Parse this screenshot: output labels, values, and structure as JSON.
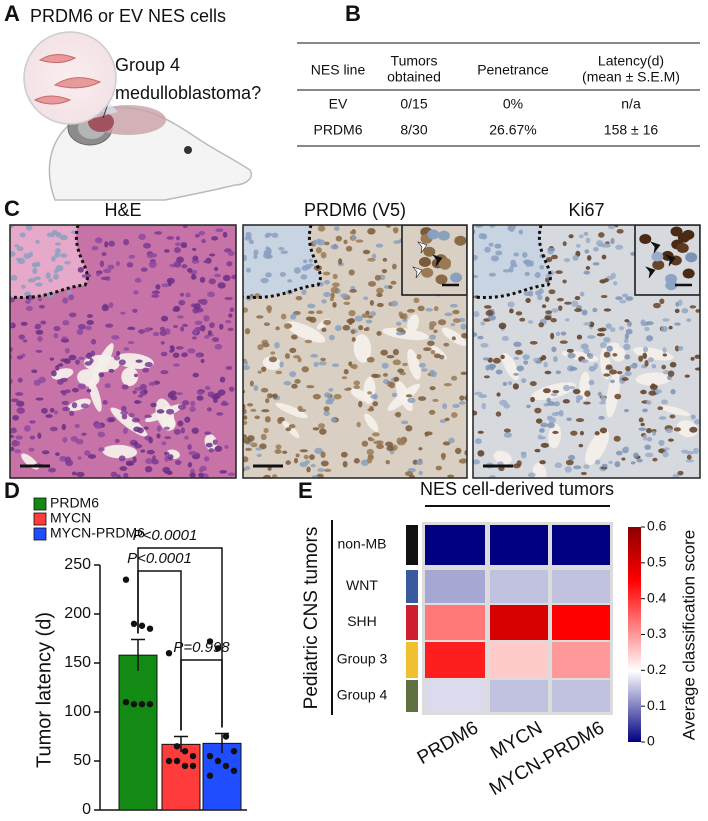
{
  "panel_labels": [
    "A",
    "B",
    "C",
    "D",
    "E"
  ],
  "schematic": {
    "title": "PRDM6 or EV NES cells",
    "question": [
      "Group 4",
      "medulloblastoma?"
    ]
  },
  "table": {
    "header": [
      [
        "NES line"
      ],
      [
        "Tumors",
        "obtained"
      ],
      [
        "Penetrance"
      ],
      [
        "Latency(d)",
        "(mean ± S.E.M)"
      ]
    ],
    "rows": [
      [
        "EV",
        "0/15",
        "0%",
        "n/a"
      ],
      [
        "PRDM6",
        "8/30",
        "26.67%",
        "158 ± 16"
      ]
    ]
  },
  "histology": {
    "stains": [
      "H&E",
      "PRDM6 (V5)",
      "Ki67"
    ]
  },
  "chart_data": [
    {
      "type": "bar",
      "ylabel": "Tumor latency (d)",
      "ylim": [
        0,
        250
      ],
      "yticks": [
        0,
        50,
        100,
        150,
        200,
        250
      ],
      "series": [
        {
          "name": "PRDM6",
          "color": "#138a13",
          "values": [
            158
          ],
          "errors": [
            16
          ],
          "points": [
            235,
            190,
            188,
            185,
            110,
            108,
            108,
            108
          ]
        },
        {
          "name": "MYCN",
          "color": "#ff3b3b",
          "values": [
            67
          ],
          "errors": [
            8
          ],
          "points": [
            160,
            65,
            60,
            55,
            50,
            50,
            45,
            45
          ]
        },
        {
          "name": "MYCN-PRDM6",
          "color": "#1f4dff",
          "values": [
            68
          ],
          "errors": [
            10
          ],
          "points": [
            172,
            165,
            75,
            60,
            55,
            50,
            45,
            40,
            35
          ]
        }
      ],
      "annotations": [
        "P<0.0001",
        "P<0.0001",
        "P=0.998"
      ]
    },
    {
      "type": "heatmap",
      "title": "NES cell-derived tumors",
      "ylabel": "Pediatric CNS tumors",
      "columns": [
        "PRDM6",
        "MYCN",
        "MYCN-PRDM6"
      ],
      "rows": [
        "non-MB",
        "WNT",
        "SHH",
        "Group 3",
        "Group 4"
      ],
      "row_colors": [
        "#111111",
        "#3a5aa0",
        "#d02030",
        "#f0c030",
        "#607040"
      ],
      "values": [
        [
          0.0,
          0.0,
          0.0
        ],
        [
          0.13,
          0.15,
          0.15
        ],
        [
          0.33,
          0.5,
          0.45
        ],
        [
          0.42,
          0.25,
          0.3
        ],
        [
          0.17,
          0.15,
          0.15
        ]
      ],
      "colorbar_label": "Average classification score",
      "zlim": [
        0,
        0.6
      ],
      "zticks": [
        0,
        0.1,
        0.2,
        0.3,
        0.4,
        0.5,
        0.6
      ]
    }
  ]
}
